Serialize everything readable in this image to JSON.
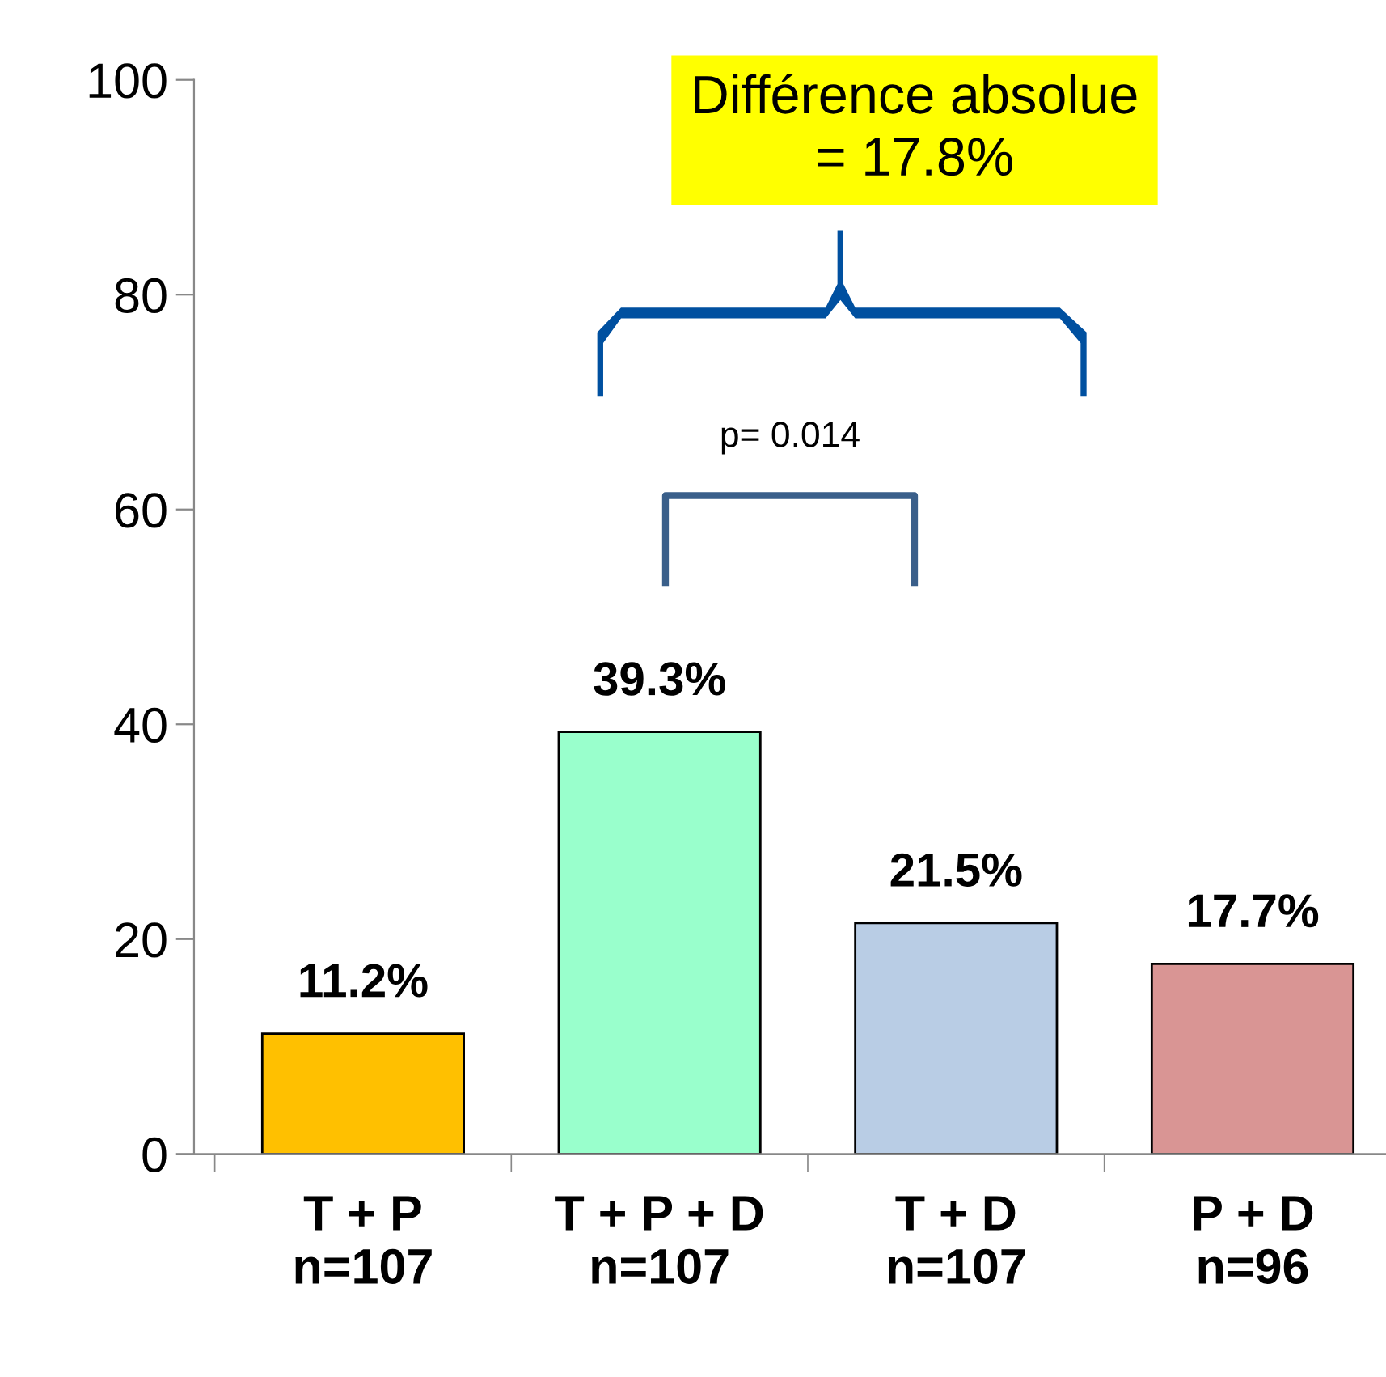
{
  "chart_data": {
    "type": "bar",
    "categories": [
      "T + P\nn=107",
      "T + P + D\nn=107",
      "T + D\nn=107",
      "P + D\nn=96"
    ],
    "values": [
      11.2,
      39.3,
      21.5,
      17.7
    ],
    "colors": [
      "#ffc000",
      "#99ffcc",
      "#b9cde5",
      "#d99594"
    ],
    "value_labels": [
      "11.2%",
      "39.3%",
      "21.5%",
      "17.7%"
    ],
    "annotations": [
      "Différence absolue\n= 17.8%",
      "p= 0.014"
    ],
    "ylim": [
      0,
      100
    ],
    "yticks": [
      0,
      20,
      40,
      60,
      80,
      100
    ],
    "grid": false,
    "legend": false
  }
}
